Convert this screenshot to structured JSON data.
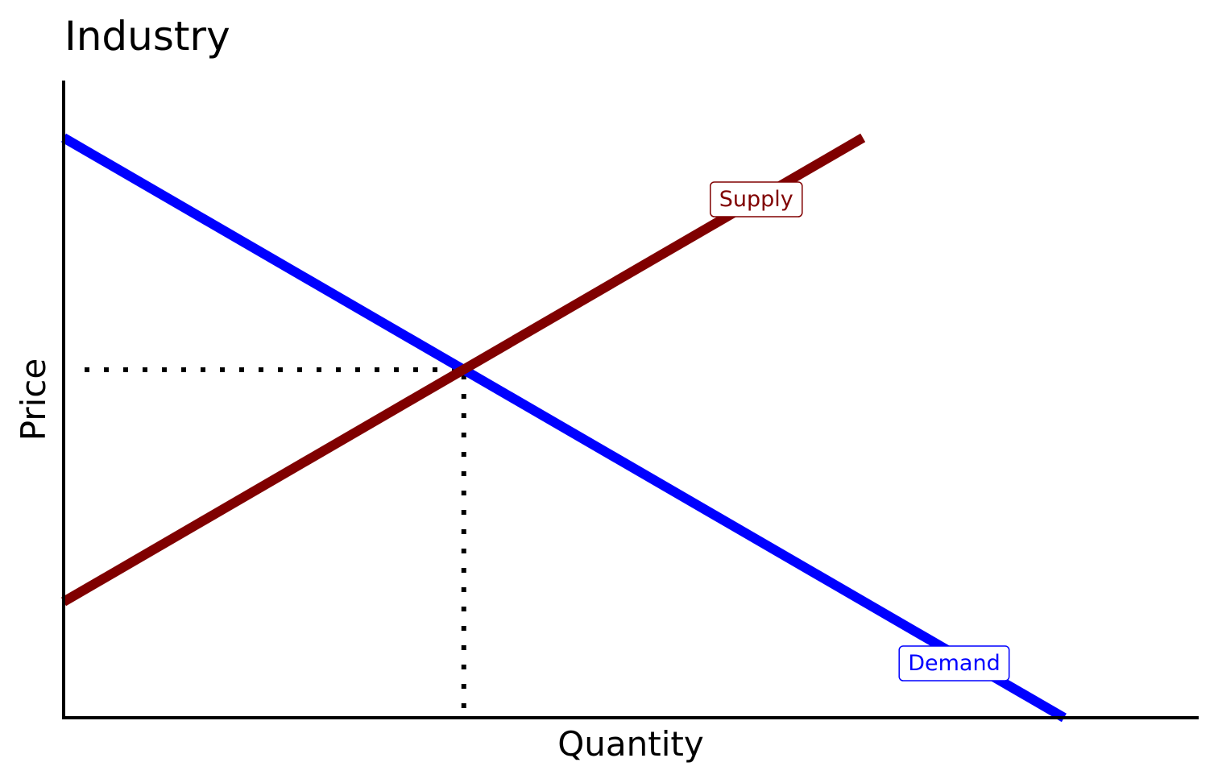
{
  "chart_data": {
    "type": "line",
    "title": "Industry",
    "xlabel": "Quantity",
    "ylabel": "Price",
    "xlim": [
      0,
      10
    ],
    "ylim": [
      0,
      10
    ],
    "show_tick_labels": false,
    "grid": false,
    "legend": "none",
    "series": [
      {
        "name": "Demand",
        "color": "#0000ff",
        "x": [
          0,
          9.1
        ],
        "y": [
          9.0,
          0.0
        ],
        "label_at": {
          "x": 8.1,
          "y": 0.85
        }
      },
      {
        "name": "Supply",
        "color": "#800000",
        "x": [
          0,
          7.27
        ],
        "y": [
          1.8,
          9.0
        ],
        "label_at": {
          "x": 6.3,
          "y": 8.05
        }
      }
    ],
    "equilibrium": {
      "x": 3.64,
      "y": 5.4,
      "guide_style": "dotted"
    }
  }
}
